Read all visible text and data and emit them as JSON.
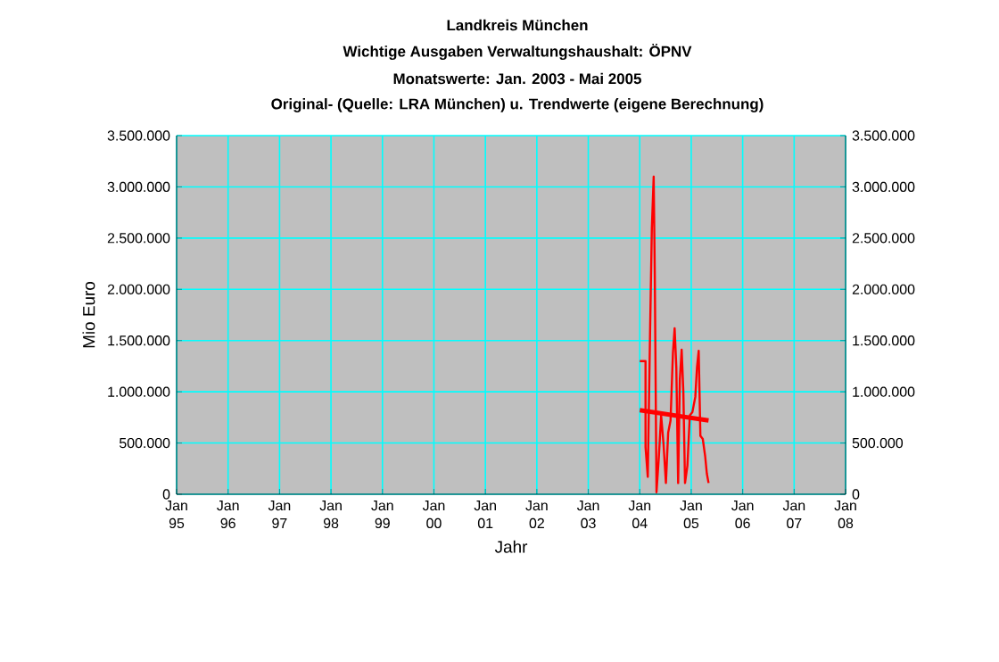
{
  "chart_data": {
    "type": "line",
    "title": "Landkreis München",
    "subtitle": "Wichtige Ausgaben Verwaltungshaushalt: ÖPNV",
    "annotations": [
      "Monatswerte: Jan. 2003 - Mai 2005",
      "Original- (Quelle: LRA München) u. Trendwerte (eigene Berechnung)"
    ],
    "xlabel": "Jahr",
    "ylabel": "Mio Euro",
    "xlim": [
      "1995-01",
      "2008-01"
    ],
    "xticks": [
      {
        "value": "1995-01",
        "label": "Jan 95"
      },
      {
        "value": "1996-01",
        "label": "Jan 96"
      },
      {
        "value": "1997-01",
        "label": "Jan 97"
      },
      {
        "value": "1998-01",
        "label": "Jan 98"
      },
      {
        "value": "1999-01",
        "label": "Jan 99"
      },
      {
        "value": "2000-01",
        "label": "Jan 00"
      },
      {
        "value": "2001-01",
        "label": "Jan 01"
      },
      {
        "value": "2002-01",
        "label": "Jan 02"
      },
      {
        "value": "2003-01",
        "label": "Jan 03"
      },
      {
        "value": "2004-01",
        "label": "Jan 04"
      },
      {
        "value": "2005-01",
        "label": "Jan 05"
      },
      {
        "value": "2006-01",
        "label": "Jan 06"
      },
      {
        "value": "2007-01",
        "label": "Jan 07"
      },
      {
        "value": "2008-01",
        "label": "Jan 08"
      }
    ],
    "ylim": [
      0,
      3500000
    ],
    "yticks": [
      0,
      {
        "value": 500000,
        "label": "500.000"
      },
      {
        "value": 1000000,
        "label": "1.000.000"
      },
      {
        "value": 1500000,
        "label": "1.500.000"
      },
      {
        "value": 2000000,
        "label": "2.000.000"
      },
      {
        "value": 2500000,
        "label": "2.500.000"
      },
      {
        "value": 3000000,
        "label": "3.000.000"
      },
      {
        "value": 3500000,
        "label": "3.500.000"
      }
    ],
    "y2lim": [
      0,
      3500000
    ],
    "y2ticks": [
      0,
      {
        "value": 500000,
        "label": "500.000"
      },
      {
        "value": 1000000,
        "label": "1.000.000"
      },
      {
        "value": 1500000,
        "label": "1.500.000"
      },
      {
        "value": 2000000,
        "label": "2.000.000"
      },
      {
        "value": 2500000,
        "label": "2.500.000"
      },
      {
        "value": 3000000,
        "label": "3.000.000"
      },
      {
        "value": 3500000,
        "label": "3.500.000"
      }
    ],
    "grid": true,
    "series": [
      {
        "color": "#ff0000",
        "x": [
          "2004-01-01",
          "2004-02-11",
          "2004-02-11",
          "2004-02-27",
          "2004-03-15",
          "2004-03-27",
          "2004-04-09",
          "2004-04-17",
          "2004-04-29",
          "2004-05-16",
          "2004-06-01",
          "2004-06-18",
          "2004-07-05",
          "2004-07-21",
          "2004-08-07",
          "2004-08-24",
          "2004-09-05",
          "2004-09-17",
          "2004-09-30",
          "2004-10-12",
          "2004-10-25",
          "2004-11-06",
          "2004-11-18",
          "2004-12-05",
          "2004-12-22",
          "2005-01-09",
          "2005-01-30",
          "2005-02-11",
          "2005-02-23",
          "2005-03-07",
          "2005-03-24",
          "2005-04-10",
          "2005-04-22",
          "2005-05-04"
        ],
        "values": [
          1300000,
          1300000,
          460000,
          170000,
          1640000,
          2600000,
          3100000,
          2130000,
          20000,
          370000,
          770000,
          490000,
          110000,
          600000,
          720000,
          1380000,
          1620000,
          1240000,
          110000,
          1120000,
          1410000,
          1000000,
          110000,
          280000,
          770000,
          800000,
          950000,
          1240000,
          1400000,
          570000,
          540000,
          370000,
          200000,
          110000
        ]
      },
      {
        "type": "line",
        "color": "#ff0000",
        "x": [
          "2004-01-01",
          "2005-05-04"
        ],
        "values": [
          820000,
          720000
        ]
      }
    ]
  }
}
